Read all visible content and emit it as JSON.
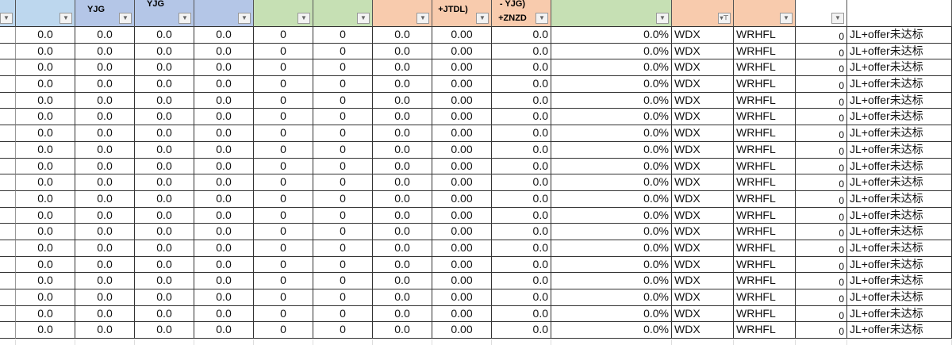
{
  "colors": {
    "light_blue": "#bdd7ee",
    "blue": "#b4c6e7",
    "green": "#c6e0b4",
    "peach": "#f8cbad",
    "white": "#ffffff"
  },
  "columns": [
    {
      "label": "",
      "color": "light_blue",
      "filter": "funnel-dropdown-icon"
    },
    {
      "label": "",
      "color": "light_blue",
      "filter": "dropdown-icon"
    },
    {
      "label": "YJG",
      "color": "blue",
      "filter": "dropdown-icon"
    },
    {
      "label": "YJG",
      "color": "blue",
      "filter": "dropdown-icon",
      "top": true
    },
    {
      "label": "",
      "color": "blue",
      "filter": "dropdown-icon"
    },
    {
      "label": "",
      "color": "green",
      "filter": "dropdown-icon"
    },
    {
      "label": "",
      "color": "green",
      "filter": "dropdown-icon"
    },
    {
      "label": "",
      "color": "peach",
      "filter": "dropdown-icon"
    },
    {
      "label": "+JTDL)",
      "color": "peach",
      "filter": "dropdown-icon"
    },
    {
      "label": "- YJG)\n+ZNZD",
      "color": "peach",
      "filter": "dropdown-icon",
      "top": true
    },
    {
      "label": "",
      "color": "green",
      "filter": "dropdown-icon"
    },
    {
      "label": "",
      "color": "peach",
      "filter": "filter-active-icon"
    },
    {
      "label": "",
      "color": "peach",
      "filter": "dropdown-icon"
    },
    {
      "label": "",
      "color": "white",
      "filter": "dropdown-icon"
    },
    {
      "label": "",
      "color": "white",
      "filter": null
    }
  ],
  "rows": [
    [
      "",
      "0.0",
      "0.0",
      "0.0",
      "0.0",
      "0",
      "0",
      "0.0",
      "0.00",
      "0.0",
      "0.0%",
      "WDX",
      "WRHFL",
      "0",
      "JL+offer未达标"
    ],
    [
      "",
      "0.0",
      "0.0",
      "0.0",
      "0.0",
      "0",
      "0",
      "0.0",
      "0.00",
      "0.0",
      "0.0%",
      "WDX",
      "WRHFL",
      "0",
      "JL+offer未达标"
    ],
    [
      "",
      "0.0",
      "0.0",
      "0.0",
      "0.0",
      "0",
      "0",
      "0.0",
      "0.00",
      "0.0",
      "0.0%",
      "WDX",
      "WRHFL",
      "0",
      "JL+offer未达标"
    ],
    [
      "",
      "0.0",
      "0.0",
      "0.0",
      "0.0",
      "0",
      "0",
      "0.0",
      "0.00",
      "0.0",
      "0.0%",
      "WDX",
      "WRHFL",
      "0",
      "JL+offer未达标"
    ],
    [
      "",
      "0.0",
      "0.0",
      "0.0",
      "0.0",
      "0",
      "0",
      "0.0",
      "0.00",
      "0.0",
      "0.0%",
      "WDX",
      "WRHFL",
      "0",
      "JL+offer未达标"
    ],
    [
      "",
      "0.0",
      "0.0",
      "0.0",
      "0.0",
      "0",
      "0",
      "0.0",
      "0.00",
      "0.0",
      "0.0%",
      "WDX",
      "WRHFL",
      "0",
      "JL+offer未达标"
    ],
    [
      "",
      "0.0",
      "0.0",
      "0.0",
      "0.0",
      "0",
      "0",
      "0.0",
      "0.00",
      "0.0",
      "0.0%",
      "WDX",
      "WRHFL",
      "0",
      "JL+offer未达标"
    ],
    [
      "",
      "0.0",
      "0.0",
      "0.0",
      "0.0",
      "0",
      "0",
      "0.0",
      "0.00",
      "0.0",
      "0.0%",
      "WDX",
      "WRHFL",
      "0",
      "JL+offer未达标"
    ],
    [
      "",
      "0.0",
      "0.0",
      "0.0",
      "0.0",
      "0",
      "0",
      "0.0",
      "0.00",
      "0.0",
      "0.0%",
      "WDX",
      "WRHFL",
      "0",
      "JL+offer未达标"
    ],
    [
      "",
      "0.0",
      "0.0",
      "0.0",
      "0.0",
      "0",
      "0",
      "0.0",
      "0.00",
      "0.0",
      "0.0%",
      "WDX",
      "WRHFL",
      "0",
      "JL+offer未达标"
    ],
    [
      "",
      "0.0",
      "0.0",
      "0.0",
      "0.0",
      "0",
      "0",
      "0.0",
      "0.00",
      "0.0",
      "0.0%",
      "WDX",
      "WRHFL",
      "0",
      "JL+offer未达标"
    ],
    [
      "",
      "0.0",
      "0.0",
      "0.0",
      "0.0",
      "0",
      "0",
      "0.0",
      "0.00",
      "0.0",
      "0.0%",
      "WDX",
      "WRHFL",
      "0",
      "JL+offer未达标"
    ],
    [
      "",
      "0.0",
      "0.0",
      "0.0",
      "0.0",
      "0",
      "0",
      "0.0",
      "0.00",
      "0.0",
      "0.0%",
      "WDX",
      "WRHFL",
      "0",
      "JL+offer未达标"
    ],
    [
      "",
      "0.0",
      "0.0",
      "0.0",
      "0.0",
      "0",
      "0",
      "0.0",
      "0.00",
      "0.0",
      "0.0%",
      "WDX",
      "WRHFL",
      "0",
      "JL+offer未达标"
    ],
    [
      "",
      "0.0",
      "0.0",
      "0.0",
      "0.0",
      "0",
      "0",
      "0.0",
      "0.00",
      "0.0",
      "0.0%",
      "WDX",
      "WRHFL",
      "0",
      "JL+offer未达标"
    ],
    [
      "",
      "0.0",
      "0.0",
      "0.0",
      "0.0",
      "0",
      "0",
      "0.0",
      "0.00",
      "0.0",
      "0.0%",
      "WDX",
      "WRHFL",
      "0",
      "JL+offer未达标"
    ],
    [
      "",
      "0.0",
      "0.0",
      "0.0",
      "0.0",
      "0",
      "0",
      "0.0",
      "0.00",
      "0.0",
      "0.0%",
      "WDX",
      "WRHFL",
      "0",
      "JL+offer未达标"
    ],
    [
      "",
      "0.0",
      "0.0",
      "0.0",
      "0.0",
      "0",
      "0",
      "0.0",
      "0.00",
      "0.0",
      "0.0%",
      "WDX",
      "WRHFL",
      "0",
      "JL+offer未达标"
    ],
    [
      "",
      "0.0",
      "0.0",
      "0.0",
      "0.0",
      "0",
      "0",
      "0.0",
      "0.00",
      "0.0",
      "0.0%",
      "WDX",
      "WRHFL",
      "0",
      "JL+offer未达标"
    ]
  ]
}
